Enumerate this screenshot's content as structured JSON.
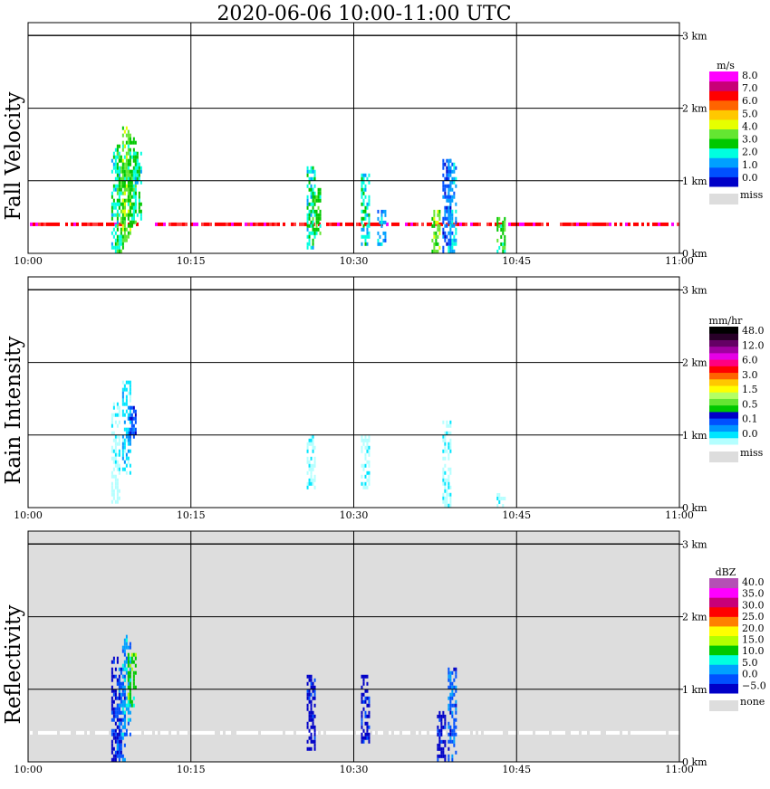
{
  "title": "2020-06-06  10:00-11:00 UTC",
  "chart_data": [
    {
      "type": "heatmap",
      "panel_label": "Fall Velocity",
      "x_ticks": [
        "10:00",
        "10:15",
        "10:30",
        "10:45",
        "11:00"
      ],
      "y_ticks": [
        "0 km",
        "1 km",
        "2 km",
        "3 km"
      ],
      "xlim": [
        "10:00",
        "11:00"
      ],
      "ylim_km": [
        0,
        3.5
      ],
      "background": "#ffffff",
      "colorbar": {
        "unit": "m/s",
        "colors": [
          "#0000c8",
          "#0050ff",
          "#00a0ff",
          "#00ffe0",
          "#00c800",
          "#64e632",
          "#e6ff00",
          "#ffc800",
          "#ff6400",
          "#ff0000",
          "#c80078",
          "#ff00ff"
        ],
        "labels": [
          "8.0",
          "7.0",
          "6.0",
          "5.0",
          "4.0",
          "3.0",
          "2.0",
          "1.0",
          "0.0"
        ],
        "miss_label": "miss",
        "miss_color": "#dddddd"
      },
      "echoes": [
        {
          "t": 8.0,
          "h0": 0.05,
          "h1": 1.45,
          "c": 3
        },
        {
          "t": 8.5,
          "h0": 0.05,
          "h1": 1.5,
          "c": 4
        },
        {
          "t": 9.0,
          "h0": 0.2,
          "h1": 1.75,
          "c": 5
        },
        {
          "t": 9.5,
          "h0": 0.4,
          "h1": 1.6,
          "c": 4
        },
        {
          "t": 10.0,
          "h0": 0.5,
          "h1": 1.4,
          "c": 3
        },
        {
          "t": 26.0,
          "h0": 0.1,
          "h1": 1.2,
          "c": 3
        },
        {
          "t": 26.5,
          "h0": 0.3,
          "h1": 0.9,
          "c": 4
        },
        {
          "t": 31.0,
          "h0": 0.15,
          "h1": 1.1,
          "c": 3
        },
        {
          "t": 32.5,
          "h0": 0.15,
          "h1": 0.6,
          "c": 2
        },
        {
          "t": 37.5,
          "h0": 0.05,
          "h1": 0.6,
          "c": 5
        },
        {
          "t": 38.5,
          "h0": 0.05,
          "h1": 1.3,
          "c": 1
        },
        {
          "t": 39.0,
          "h0": 0.05,
          "h1": 1.3,
          "c": 2
        },
        {
          "t": 43.5,
          "h0": 0.05,
          "h1": 0.5,
          "c": 4
        }
      ],
      "noise_line_km": 0.4
    },
    {
      "type": "heatmap",
      "panel_label": "Rain Intensity",
      "x_ticks": [
        "10:00",
        "10:15",
        "10:30",
        "10:45",
        "11:00"
      ],
      "y_ticks": [
        "0 km",
        "1 km",
        "2 km",
        "3 km"
      ],
      "xlim": [
        "10:00",
        "11:00"
      ],
      "ylim_km": [
        0,
        3.5
      ],
      "background": "#ffffff",
      "colorbar": {
        "unit": "mm/hr",
        "colors": [
          "#b4ffff",
          "#00e6ff",
          "#0096ff",
          "#0050ff",
          "#0000c8",
          "#00c800",
          "#64e632",
          "#b4ff64",
          "#ffff00",
          "#ffc800",
          "#ff6400",
          "#ff0000",
          "#ff0080",
          "#e600e6",
          "#a000a0",
          "#640064",
          "#280028",
          "#000000"
        ],
        "labels": [
          "48.0",
          "12.0",
          "6.0",
          "3.0",
          "1.5",
          "0.5",
          "0.1",
          "0.0"
        ],
        "miss_label": "miss",
        "miss_color": "#dddddd"
      },
      "echoes": [
        {
          "t": 8.0,
          "h0": 0.05,
          "h1": 1.45,
          "c": 0
        },
        {
          "t": 9.0,
          "h0": 0.5,
          "h1": 1.75,
          "c": 1
        },
        {
          "t": 9.5,
          "h0": 1.0,
          "h1": 1.4,
          "c": 3
        },
        {
          "t": 26.0,
          "h0": 0.3,
          "h1": 1.0,
          "c": 0
        },
        {
          "t": 31.0,
          "h0": 0.3,
          "h1": 1.0,
          "c": 0
        },
        {
          "t": 38.5,
          "h0": 0.05,
          "h1": 1.2,
          "c": 0
        },
        {
          "t": 43.5,
          "h0": 0.05,
          "h1": 0.2,
          "c": 0
        }
      ]
    },
    {
      "type": "heatmap",
      "panel_label": "Reflectivity",
      "x_ticks": [
        "10:00",
        "10:15",
        "10:30",
        "10:45",
        "11:00"
      ],
      "y_ticks": [
        "0 km",
        "1 km",
        "2 km",
        "3 km"
      ],
      "xlim": [
        "10:00",
        "11:00"
      ],
      "ylim_km": [
        0,
        3.5
      ],
      "background": "#dddddd",
      "colorbar": {
        "unit": "dBZ",
        "colors": [
          "#0000c8",
          "#0050ff",
          "#00a0ff",
          "#00ffe0",
          "#00c800",
          "#b4ff00",
          "#ffff00",
          "#ff8000",
          "#ff0000",
          "#c80078",
          "#ff00ff",
          "#b450b4"
        ],
        "labels": [
          "40.0",
          "35.0",
          "30.0",
          "25.0",
          "20.0",
          "15.0",
          "10.0",
          "5.0",
          "0.0",
          "−5.0"
        ],
        "miss_label": "none",
        "miss_color": "#dddddd"
      },
      "echoes": [
        {
          "t": 8.0,
          "h0": 0.05,
          "h1": 1.45,
          "c": 0
        },
        {
          "t": 8.5,
          "h0": 0.05,
          "h1": 1.3,
          "c": 1
        },
        {
          "t": 9.0,
          "h0": 0.4,
          "h1": 1.75,
          "c": 2
        },
        {
          "t": 9.5,
          "h0": 0.8,
          "h1": 1.5,
          "c": 4
        },
        {
          "t": 26.0,
          "h0": 0.2,
          "h1": 1.2,
          "c": 0
        },
        {
          "t": 31.0,
          "h0": 0.3,
          "h1": 1.2,
          "c": 0
        },
        {
          "t": 38.0,
          "h0": 0.05,
          "h1": 0.7,
          "c": 0
        },
        {
          "t": 39.0,
          "h0": 0.05,
          "h1": 1.3,
          "c": 1
        }
      ],
      "noise_line_km": 0.4
    }
  ]
}
